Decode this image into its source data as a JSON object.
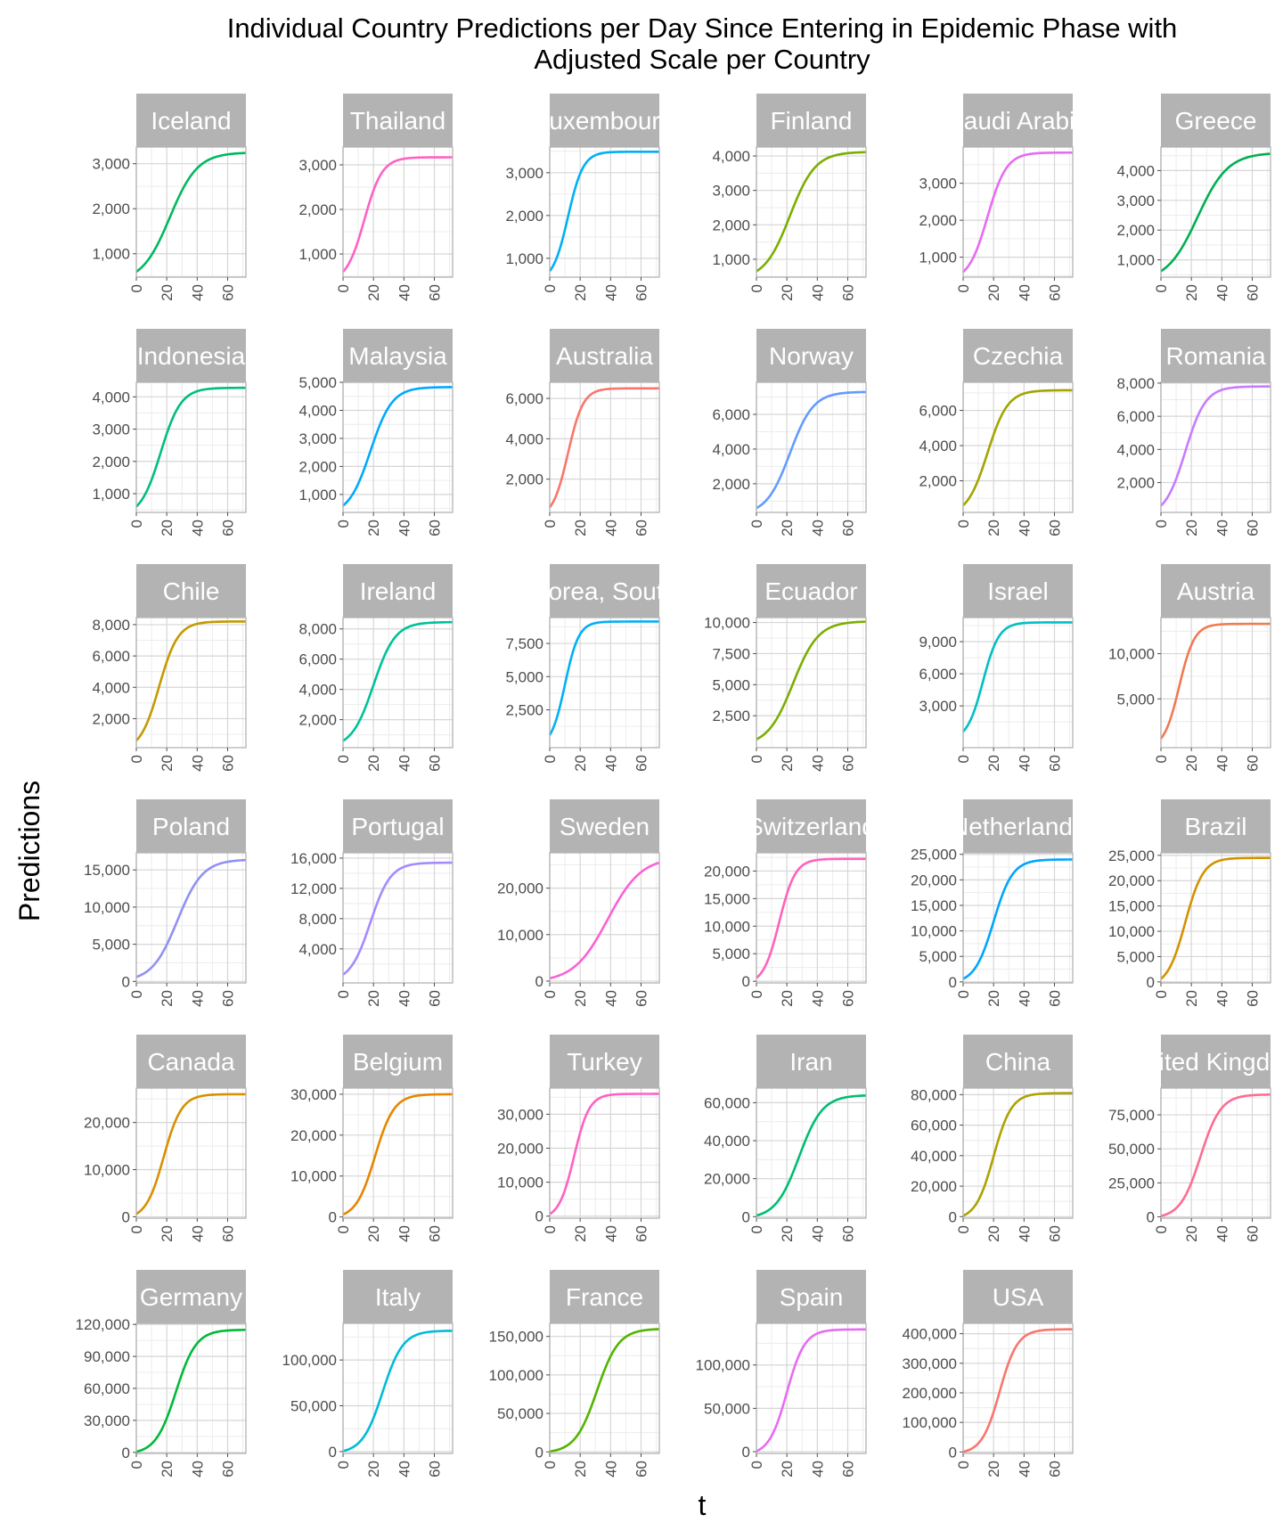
{
  "title_line1": "Individual Country Predictions per Day Since Entering in Epidemic Phase with",
  "title_line2": "Adjusted Scale per Country",
  "xlabel": "t",
  "ylabel": "Predictions",
  "chart_data": {
    "type": "line",
    "facets": "6 columns, free y scale per panel",
    "x_range": [
      0,
      72
    ],
    "x_ticks": [
      0,
      20,
      40,
      60
    ],
    "grid": true,
    "panels": [
      {
        "label": "Iceland",
        "color": "#00BA5F",
        "ymin": 600,
        "asymptote": 3250,
        "midpoint": 22,
        "rate": 0.11,
        "ylim": [
          480,
          3370
        ],
        "yticks": [
          1000,
          2000,
          3000
        ],
        "ytick_labels": [
          "1,000",
          "2,000",
          "3,000"
        ]
      },
      {
        "label": "Thailand",
        "color": "#FF61C3",
        "ymin": 600,
        "asymptote": 3170,
        "midpoint": 14,
        "rate": 0.17,
        "ylim": [
          480,
          3400
        ],
        "yticks": [
          1000,
          2000,
          3000
        ],
        "ytick_labels": [
          "1,000",
          "2,000",
          "3,000"
        ]
      },
      {
        "label": "Luxembourg",
        "color": "#00B0F6",
        "ymin": 700,
        "asymptote": 3490,
        "midpoint": 12,
        "rate": 0.2,
        "ylim": [
          560,
          3600
        ],
        "yticks": [
          1000,
          2000,
          3000
        ],
        "ytick_labels": [
          "1,000",
          "2,000",
          "3,000"
        ]
      },
      {
        "label": "Finland",
        "color": "#7CAE00",
        "ymin": 650,
        "asymptote": 4120,
        "midpoint": 22,
        "rate": 0.12,
        "ylim": [
          480,
          4260
        ],
        "yticks": [
          1000,
          2000,
          3000,
          4000
        ],
        "ytick_labels": [
          "1,000",
          "2,000",
          "3,000",
          "4,000"
        ]
      },
      {
        "label": "Saudi Arabia",
        "color": "#E76BF3",
        "ymin": 600,
        "asymptote": 3830,
        "midpoint": 16,
        "rate": 0.16,
        "ylim": [
          460,
          3980
        ],
        "yticks": [
          1000,
          2000,
          3000
        ],
        "ytick_labels": [
          "1,000",
          "2,000",
          "3,000"
        ]
      },
      {
        "label": "Greece",
        "color": "#00B050",
        "ymin": 620,
        "asymptote": 4600,
        "midpoint": 24,
        "rate": 0.1,
        "ylim": [
          420,
          4790
        ],
        "yticks": [
          1000,
          2000,
          3000,
          4000
        ],
        "ytick_labels": [
          "1,000",
          "2,000",
          "3,000",
          "4,000"
        ]
      },
      {
        "label": "Indonesia",
        "color": "#00BF7D",
        "ymin": 600,
        "asymptote": 4280,
        "midpoint": 16,
        "rate": 0.15,
        "ylim": [
          420,
          4450
        ],
        "yticks": [
          1000,
          2000,
          3000,
          4000
        ],
        "ytick_labels": [
          "1,000",
          "2,000",
          "3,000",
          "4,000"
        ]
      },
      {
        "label": "Malaysia",
        "color": "#00A9FF",
        "ymin": 600,
        "asymptote": 4830,
        "midpoint": 18,
        "rate": 0.14,
        "ylim": [
          360,
          5000
        ],
        "yticks": [
          1000,
          2000,
          3000,
          4000,
          5000
        ],
        "ytick_labels": [
          "1,000",
          "2,000",
          "3,000",
          "4,000",
          "5,000"
        ]
      },
      {
        "label": "Australia",
        "color": "#F8766D",
        "ymin": 600,
        "asymptote": 6500,
        "midpoint": 12,
        "rate": 0.2,
        "ylim": [
          350,
          6800
        ],
        "yticks": [
          2000,
          4000,
          6000
        ],
        "ytick_labels": [
          "2,000",
          "4,000",
          "6,000"
        ]
      },
      {
        "label": "Norway",
        "color": "#619CFF",
        "ymin": 600,
        "asymptote": 7300,
        "midpoint": 22,
        "rate": 0.13,
        "ylim": [
          350,
          7850
        ],
        "yticks": [
          2000,
          4000,
          6000
        ],
        "ytick_labels": [
          "2,000",
          "4,000",
          "6,000"
        ]
      },
      {
        "label": "Czechia",
        "color": "#A3A500",
        "ymin": 600,
        "asymptote": 7150,
        "midpoint": 16,
        "rate": 0.15,
        "ylim": [
          200,
          7600
        ],
        "yticks": [
          2000,
          4000,
          6000
        ],
        "ytick_labels": [
          "2,000",
          "4,000",
          "6,000"
        ]
      },
      {
        "label": "Romania",
        "color": "#C77CFF",
        "ymin": 600,
        "asymptote": 7800,
        "midpoint": 16,
        "rate": 0.15,
        "ylim": [
          200,
          8050
        ],
        "yticks": [
          2000,
          4000,
          6000,
          8000
        ],
        "ytick_labels": [
          "2,000",
          "4,000",
          "6,000",
          "8,000"
        ]
      },
      {
        "label": "Chile",
        "color": "#C49A00",
        "ymin": 600,
        "asymptote": 8200,
        "midpoint": 15,
        "rate": 0.16,
        "ylim": [
          150,
          8450
        ],
        "yticks": [
          2000,
          4000,
          6000,
          8000
        ],
        "ytick_labels": [
          "2,000",
          "4,000",
          "6,000",
          "8,000"
        ]
      },
      {
        "label": "Ireland",
        "color": "#00C19A",
        "ymin": 600,
        "asymptote": 8450,
        "midpoint": 20,
        "rate": 0.14,
        "ylim": [
          150,
          8750
        ],
        "yticks": [
          2000,
          4000,
          6000,
          8000
        ],
        "ytick_labels": [
          "2,000",
          "4,000",
          "6,000",
          "8,000"
        ]
      },
      {
        "label": "Korea, South",
        "color": "#00B0F6",
        "ymin": 600,
        "asymptote": 9150,
        "midpoint": 10,
        "rate": 0.22,
        "ylim": [
          -350,
          9450
        ],
        "yticks": [
          2500,
          5000,
          7500
        ],
        "ytick_labels": [
          "2,500",
          "5,000",
          "7,500"
        ]
      },
      {
        "label": "Ecuador",
        "color": "#7CAE00",
        "ymin": 600,
        "asymptote": 10100,
        "midpoint": 24,
        "rate": 0.12,
        "ylim": [
          -70,
          10400
        ],
        "yticks": [
          2500,
          5000,
          7500,
          10000
        ],
        "ytick_labels": [
          "2,500",
          "5,000",
          "7,500",
          "10,000"
        ]
      },
      {
        "label": "Israel",
        "color": "#00BFC4",
        "ymin": 600,
        "asymptote": 10800,
        "midpoint": 13,
        "rate": 0.19,
        "ylim": [
          -900,
          11250
        ],
        "yticks": [
          3000,
          6000,
          9000
        ],
        "ytick_labels": [
          "3,000",
          "6,000",
          "9,000"
        ]
      },
      {
        "label": "Austria",
        "color": "#F07A52",
        "ymin": 600,
        "asymptote": 13300,
        "midpoint": 12,
        "rate": 0.2,
        "ylim": [
          -400,
          14000
        ],
        "yticks": [
          5000,
          10000
        ],
        "ytick_labels": [
          "5,000",
          "10,000"
        ]
      },
      {
        "label": "Poland",
        "color": "#8F91F5",
        "ymin": 600,
        "asymptote": 16400,
        "midpoint": 27,
        "rate": 0.12,
        "ylim": [
          -200,
          17300
        ],
        "yticks": [
          0,
          5000,
          10000,
          15000
        ],
        "ytick_labels": [
          "0",
          "5,000",
          "10,000",
          "15,000"
        ]
      },
      {
        "label": "Portugal",
        "color": "#A58AFF",
        "ymin": 600,
        "asymptote": 15400,
        "midpoint": 18,
        "rate": 0.15,
        "ylim": [
          -500,
          16700
        ],
        "yticks": [
          4000,
          8000,
          12000,
          16000
        ],
        "ytick_labels": [
          "4,000",
          "8,000",
          "12,000",
          "16,000"
        ]
      },
      {
        "label": "Sweden",
        "color": "#FB61D7",
        "ymin": 600,
        "asymptote": 26700,
        "midpoint": 38,
        "rate": 0.09,
        "ylim": [
          -400,
          27600
        ],
        "yticks": [
          0,
          10000,
          20000
        ],
        "ytick_labels": [
          "0",
          "10,000",
          "20,000"
        ]
      },
      {
        "label": "Switzerland",
        "color": "#FF62BC",
        "ymin": 600,
        "asymptote": 22200,
        "midpoint": 15,
        "rate": 0.19,
        "ylim": [
          -300,
          23300
        ],
        "yticks": [
          0,
          5000,
          10000,
          15000,
          20000
        ],
        "ytick_labels": [
          "0",
          "5,000",
          "10,000",
          "15,000",
          "20,000"
        ]
      },
      {
        "label": "Netherlands",
        "color": "#00A5FF",
        "ymin": 600,
        "asymptote": 24000,
        "midpoint": 20,
        "rate": 0.16,
        "ylim": [
          -200,
          25300
        ],
        "yticks": [
          0,
          5000,
          10000,
          15000,
          20000,
          25000
        ],
        "ytick_labels": [
          "0",
          "5,000",
          "10,000",
          "15,000",
          "20,000",
          "25,000"
        ]
      },
      {
        "label": "Brazil",
        "color": "#D39200",
        "ymin": 600,
        "asymptote": 24500,
        "midpoint": 16,
        "rate": 0.17,
        "ylim": [
          -200,
          25500
        ],
        "yticks": [
          0,
          5000,
          10000,
          15000,
          20000,
          25000
        ],
        "ytick_labels": [
          "0",
          "5,000",
          "10,000",
          "15,000",
          "20,000",
          "25,000"
        ]
      },
      {
        "label": "Canada",
        "color": "#D89000",
        "ymin": 600,
        "asymptote": 26000,
        "midpoint": 18,
        "rate": 0.17,
        "ylim": [
          -300,
          27300
        ],
        "yticks": [
          0,
          10000,
          20000
        ],
        "ytick_labels": [
          "0",
          "10,000",
          "20,000"
        ]
      },
      {
        "label": "Belgium",
        "color": "#E58700",
        "ymin": 600,
        "asymptote": 30000,
        "midpoint": 21,
        "rate": 0.16,
        "ylim": [
          -300,
          31500
        ],
        "yticks": [
          0,
          10000,
          20000,
          30000
        ],
        "ytick_labels": [
          "0",
          "10,000",
          "20,000",
          "30,000"
        ]
      },
      {
        "label": "Turkey",
        "color": "#FF61C3",
        "ymin": 600,
        "asymptote": 36000,
        "midpoint": 16,
        "rate": 0.2,
        "ylim": [
          -600,
          37700
        ],
        "yticks": [
          0,
          10000,
          20000,
          30000
        ],
        "ytick_labels": [
          "0",
          "10,000",
          "20,000",
          "30,000"
        ]
      },
      {
        "label": "Iran",
        "color": "#00BE70",
        "ymin": 600,
        "asymptote": 64000,
        "midpoint": 28,
        "rate": 0.13,
        "ylim": [
          -800,
          67700
        ],
        "yticks": [
          0,
          20000,
          40000,
          60000
        ],
        "ytick_labels": [
          "0",
          "20,000",
          "40,000",
          "60,000"
        ]
      },
      {
        "label": "China",
        "color": "#AEA200",
        "ymin": 600,
        "asymptote": 81000,
        "midpoint": 20,
        "rate": 0.17,
        "ylim": [
          -1000,
          84300
        ],
        "yticks": [
          0,
          20000,
          40000,
          60000,
          80000
        ],
        "ytick_labels": [
          "0",
          "20,000",
          "40,000",
          "60,000",
          "80,000"
        ]
      },
      {
        "label": "United Kingdom",
        "color": "#FF6C91",
        "ymin": 600,
        "asymptote": 90000,
        "midpoint": 26,
        "rate": 0.15,
        "ylim": [
          -1000,
          94700
        ],
        "yticks": [
          0,
          25000,
          50000,
          75000
        ],
        "ytick_labels": [
          "0",
          "25,000",
          "50,000",
          "75,000"
        ]
      },
      {
        "label": "Germany",
        "color": "#00BA38",
        "ymin": 600,
        "asymptote": 115000,
        "midpoint": 26,
        "rate": 0.15,
        "ylim": [
          -1000,
          121000
        ],
        "yticks": [
          0,
          30000,
          60000,
          90000,
          120000
        ],
        "ytick_labels": [
          "0",
          "30,000",
          "60,000",
          "90,000",
          "120,000"
        ]
      },
      {
        "label": "Italy",
        "color": "#00BCD8",
        "ymin": 600,
        "asymptote": 132000,
        "midpoint": 26,
        "rate": 0.15,
        "ylim": [
          -2000,
          140000
        ],
        "yticks": [
          0,
          50000,
          100000
        ],
        "ytick_labels": [
          "0",
          "50,000",
          "100,000"
        ]
      },
      {
        "label": "France",
        "color": "#53B400",
        "ymin": 600,
        "asymptote": 160000,
        "midpoint": 31,
        "rate": 0.14,
        "ylim": [
          -2000,
          167000
        ],
        "yticks": [
          0,
          50000,
          100000,
          150000
        ],
        "ytick_labels": [
          "0",
          "50,000",
          "100,000",
          "150,000"
        ]
      },
      {
        "label": "Spain",
        "color": "#E76BF3",
        "ymin": 600,
        "asymptote": 141000,
        "midpoint": 20,
        "rate": 0.17,
        "ylim": [
          -2000,
          148000
        ],
        "yticks": [
          0,
          50000,
          100000
        ],
        "ytick_labels": [
          "0",
          "50,000",
          "100,000"
        ]
      },
      {
        "label": "USA",
        "color": "#F8766D",
        "ymin": 600,
        "asymptote": 415000,
        "midpoint": 24,
        "rate": 0.17,
        "ylim": [
          -5000,
          435000
        ],
        "yticks": [
          0,
          100000,
          200000,
          300000,
          400000
        ],
        "ytick_labels": [
          "0",
          "100,000",
          "200,000",
          "300,000",
          "400,000"
        ]
      }
    ]
  }
}
